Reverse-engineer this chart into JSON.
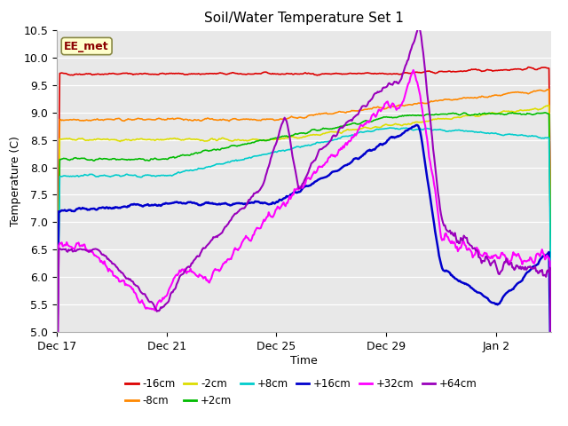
{
  "title": "Soil/Water Temperature Set 1",
  "xlabel": "Time",
  "ylabel": "Temperature (C)",
  "ylim": [
    5.0,
    10.5
  ],
  "yticks": [
    5.0,
    5.5,
    6.0,
    6.5,
    7.0,
    7.5,
    8.0,
    8.5,
    9.0,
    9.5,
    10.0,
    10.5
  ],
  "xtick_labels": [
    "Dec 17",
    "Dec 21",
    "Dec 25",
    "Dec 29",
    "Jan 2"
  ],
  "xtick_positions": [
    0,
    4,
    8,
    12,
    16
  ],
  "xlim": [
    0,
    18
  ],
  "annotation_text": "EE_met",
  "annotation_bg": "#ffffcc",
  "annotation_border": "#888844",
  "series": {
    "-16cm": {
      "color": "#dd0000",
      "linewidth": 1.2
    },
    "-8cm": {
      "color": "#ff8800",
      "linewidth": 1.2
    },
    "-2cm": {
      "color": "#dddd00",
      "linewidth": 1.2
    },
    "+2cm": {
      "color": "#00bb00",
      "linewidth": 1.2
    },
    "+8cm": {
      "color": "#00cccc",
      "linewidth": 1.2
    },
    "+16cm": {
      "color": "#0000cc",
      "linewidth": 1.8
    },
    "+32cm": {
      "color": "#ff00ff",
      "linewidth": 1.5
    },
    "+64cm": {
      "color": "#9900bb",
      "linewidth": 1.5
    }
  },
  "fig_bg": "#ffffff",
  "plot_bg": "#e8e8e8",
  "grid_color": "#ffffff",
  "legend_row1": [
    "-16cm",
    "-8cm",
    "-2cm",
    "+2cm",
    "+8cm",
    "+16cm"
  ],
  "legend_row2": [
    "+32cm",
    "+64cm"
  ]
}
